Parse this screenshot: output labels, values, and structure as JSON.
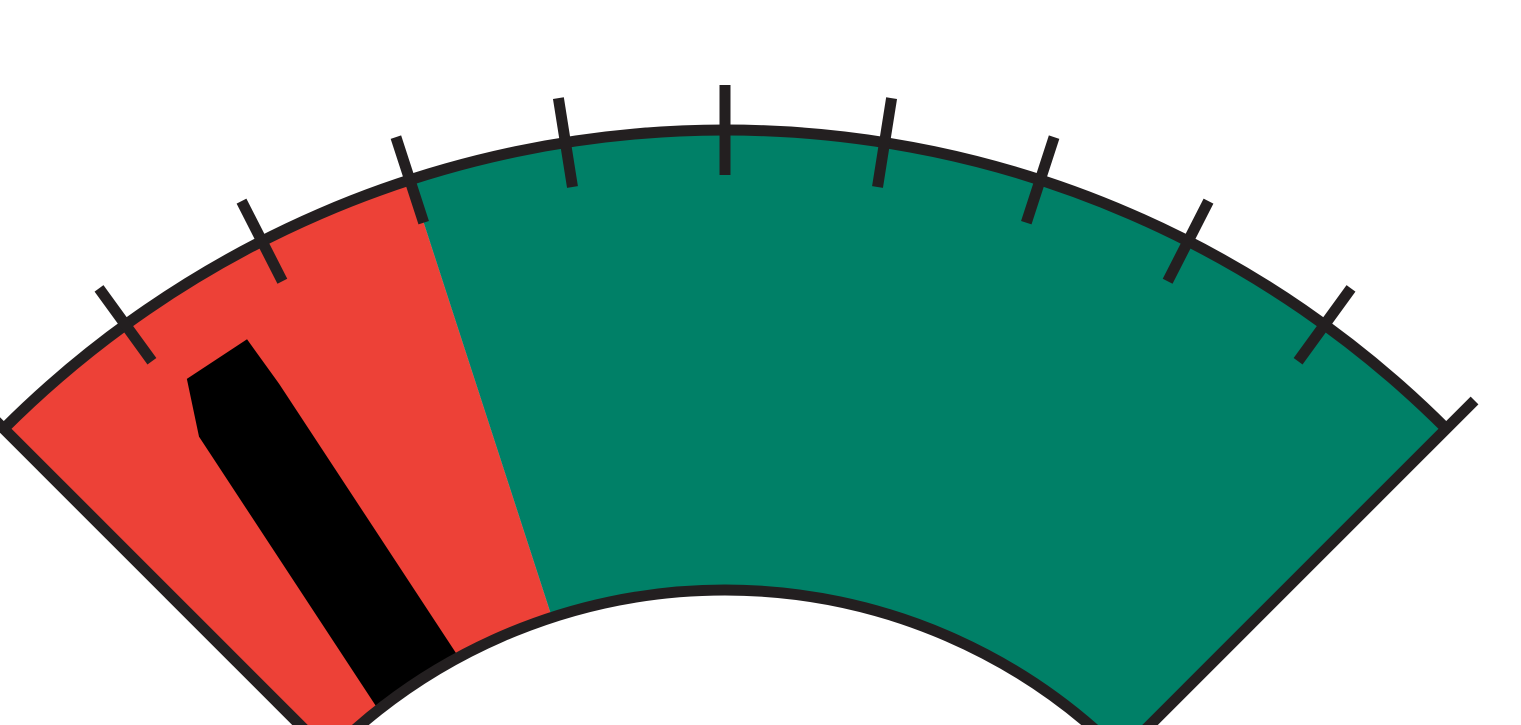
{
  "gauge": {
    "tick_count": 10,
    "level_fraction": 0.13,
    "danger_zone_fraction": 0.3,
    "colors": {
      "danger": "#ed4137",
      "safe": "#008067",
      "outline": "#231f20",
      "needle": "#000000",
      "background": "#ffffff"
    }
  }
}
